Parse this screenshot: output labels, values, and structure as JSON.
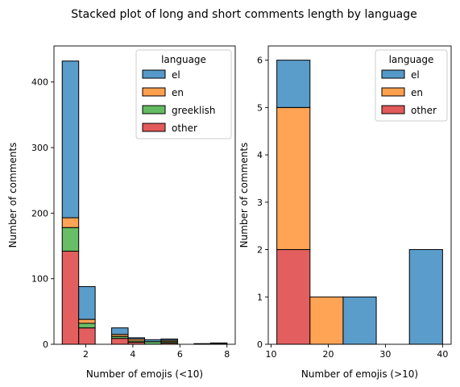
{
  "title": "Stacked plot of long and short comments length by language",
  "colors": {
    "el": "#5599c8",
    "en": "#ffa04f",
    "greeklish": "#63bb61",
    "other": "#e25a5a"
  },
  "chart_data": [
    {
      "type": "bar",
      "stacked": true,
      "xlabel": "Number of emojis (<10)",
      "ylabel": "Number of comments",
      "xlim": [
        0.65,
        8.35
      ],
      "ylim": [
        0,
        455
      ],
      "xticks": [
        2,
        4,
        6,
        8
      ],
      "yticks": [
        0,
        100,
        200,
        300,
        400
      ],
      "legend": {
        "title": "language",
        "position": "top-right",
        "entries": [
          "el",
          "en",
          "greeklish",
          "other"
        ]
      },
      "bins": [
        {
          "x0": 1.0,
          "x1": 1.7,
          "other": 142,
          "greeklish": 36,
          "en": 15,
          "el": 239
        },
        {
          "x0": 1.7,
          "x1": 2.4,
          "other": 25,
          "greeklish": 7,
          "en": 6,
          "el": 50
        },
        {
          "x0": 3.1,
          "x1": 3.8,
          "other": 9,
          "greeklish": 3,
          "en": 3,
          "el": 10
        },
        {
          "x0": 3.8,
          "x1": 4.5,
          "other": 3,
          "greeklish": 2,
          "en": 3,
          "el": 2
        },
        {
          "x0": 4.5,
          "x1": 5.2,
          "other": 0,
          "greeklish": 4,
          "en": 0,
          "el": 3
        },
        {
          "x0": 5.2,
          "x1": 5.9,
          "other": 2,
          "greeklish": 2,
          "en": 2,
          "el": 2
        },
        {
          "x0": 6.6,
          "x1": 7.3,
          "other": 0,
          "greeklish": 0,
          "en": 0,
          "el": 1
        },
        {
          "x0": 7.3,
          "x1": 8.0,
          "other": 0,
          "greeklish": 0,
          "en": 1,
          "el": 1
        }
      ]
    },
    {
      "type": "bar",
      "stacked": true,
      "xlabel": "Number of emojis (>10)",
      "ylabel": "Number of comments",
      "xlim": [
        9.5,
        41.5
      ],
      "ylim": [
        0,
        6.3
      ],
      "xticks": [
        10,
        20,
        30,
        40
      ],
      "yticks": [
        0,
        1,
        2,
        3,
        4,
        5,
        6
      ],
      "legend": {
        "title": "language",
        "position": "top-right",
        "entries": [
          "el",
          "en",
          "other"
        ]
      },
      "bins": [
        {
          "x0": 11.0,
          "x1": 16.8,
          "other": 2,
          "en": 3,
          "el": 1
        },
        {
          "x0": 16.8,
          "x1": 22.6,
          "other": 0,
          "en": 1,
          "el": 0
        },
        {
          "x0": 22.6,
          "x1": 28.4,
          "other": 0,
          "en": 0,
          "el": 1
        },
        {
          "x0": 28.4,
          "x1": 34.2,
          "other": 0,
          "en": 0,
          "el": 0
        },
        {
          "x0": 34.2,
          "x1": 40.0,
          "other": 0,
          "en": 0,
          "el": 2
        }
      ]
    }
  ]
}
